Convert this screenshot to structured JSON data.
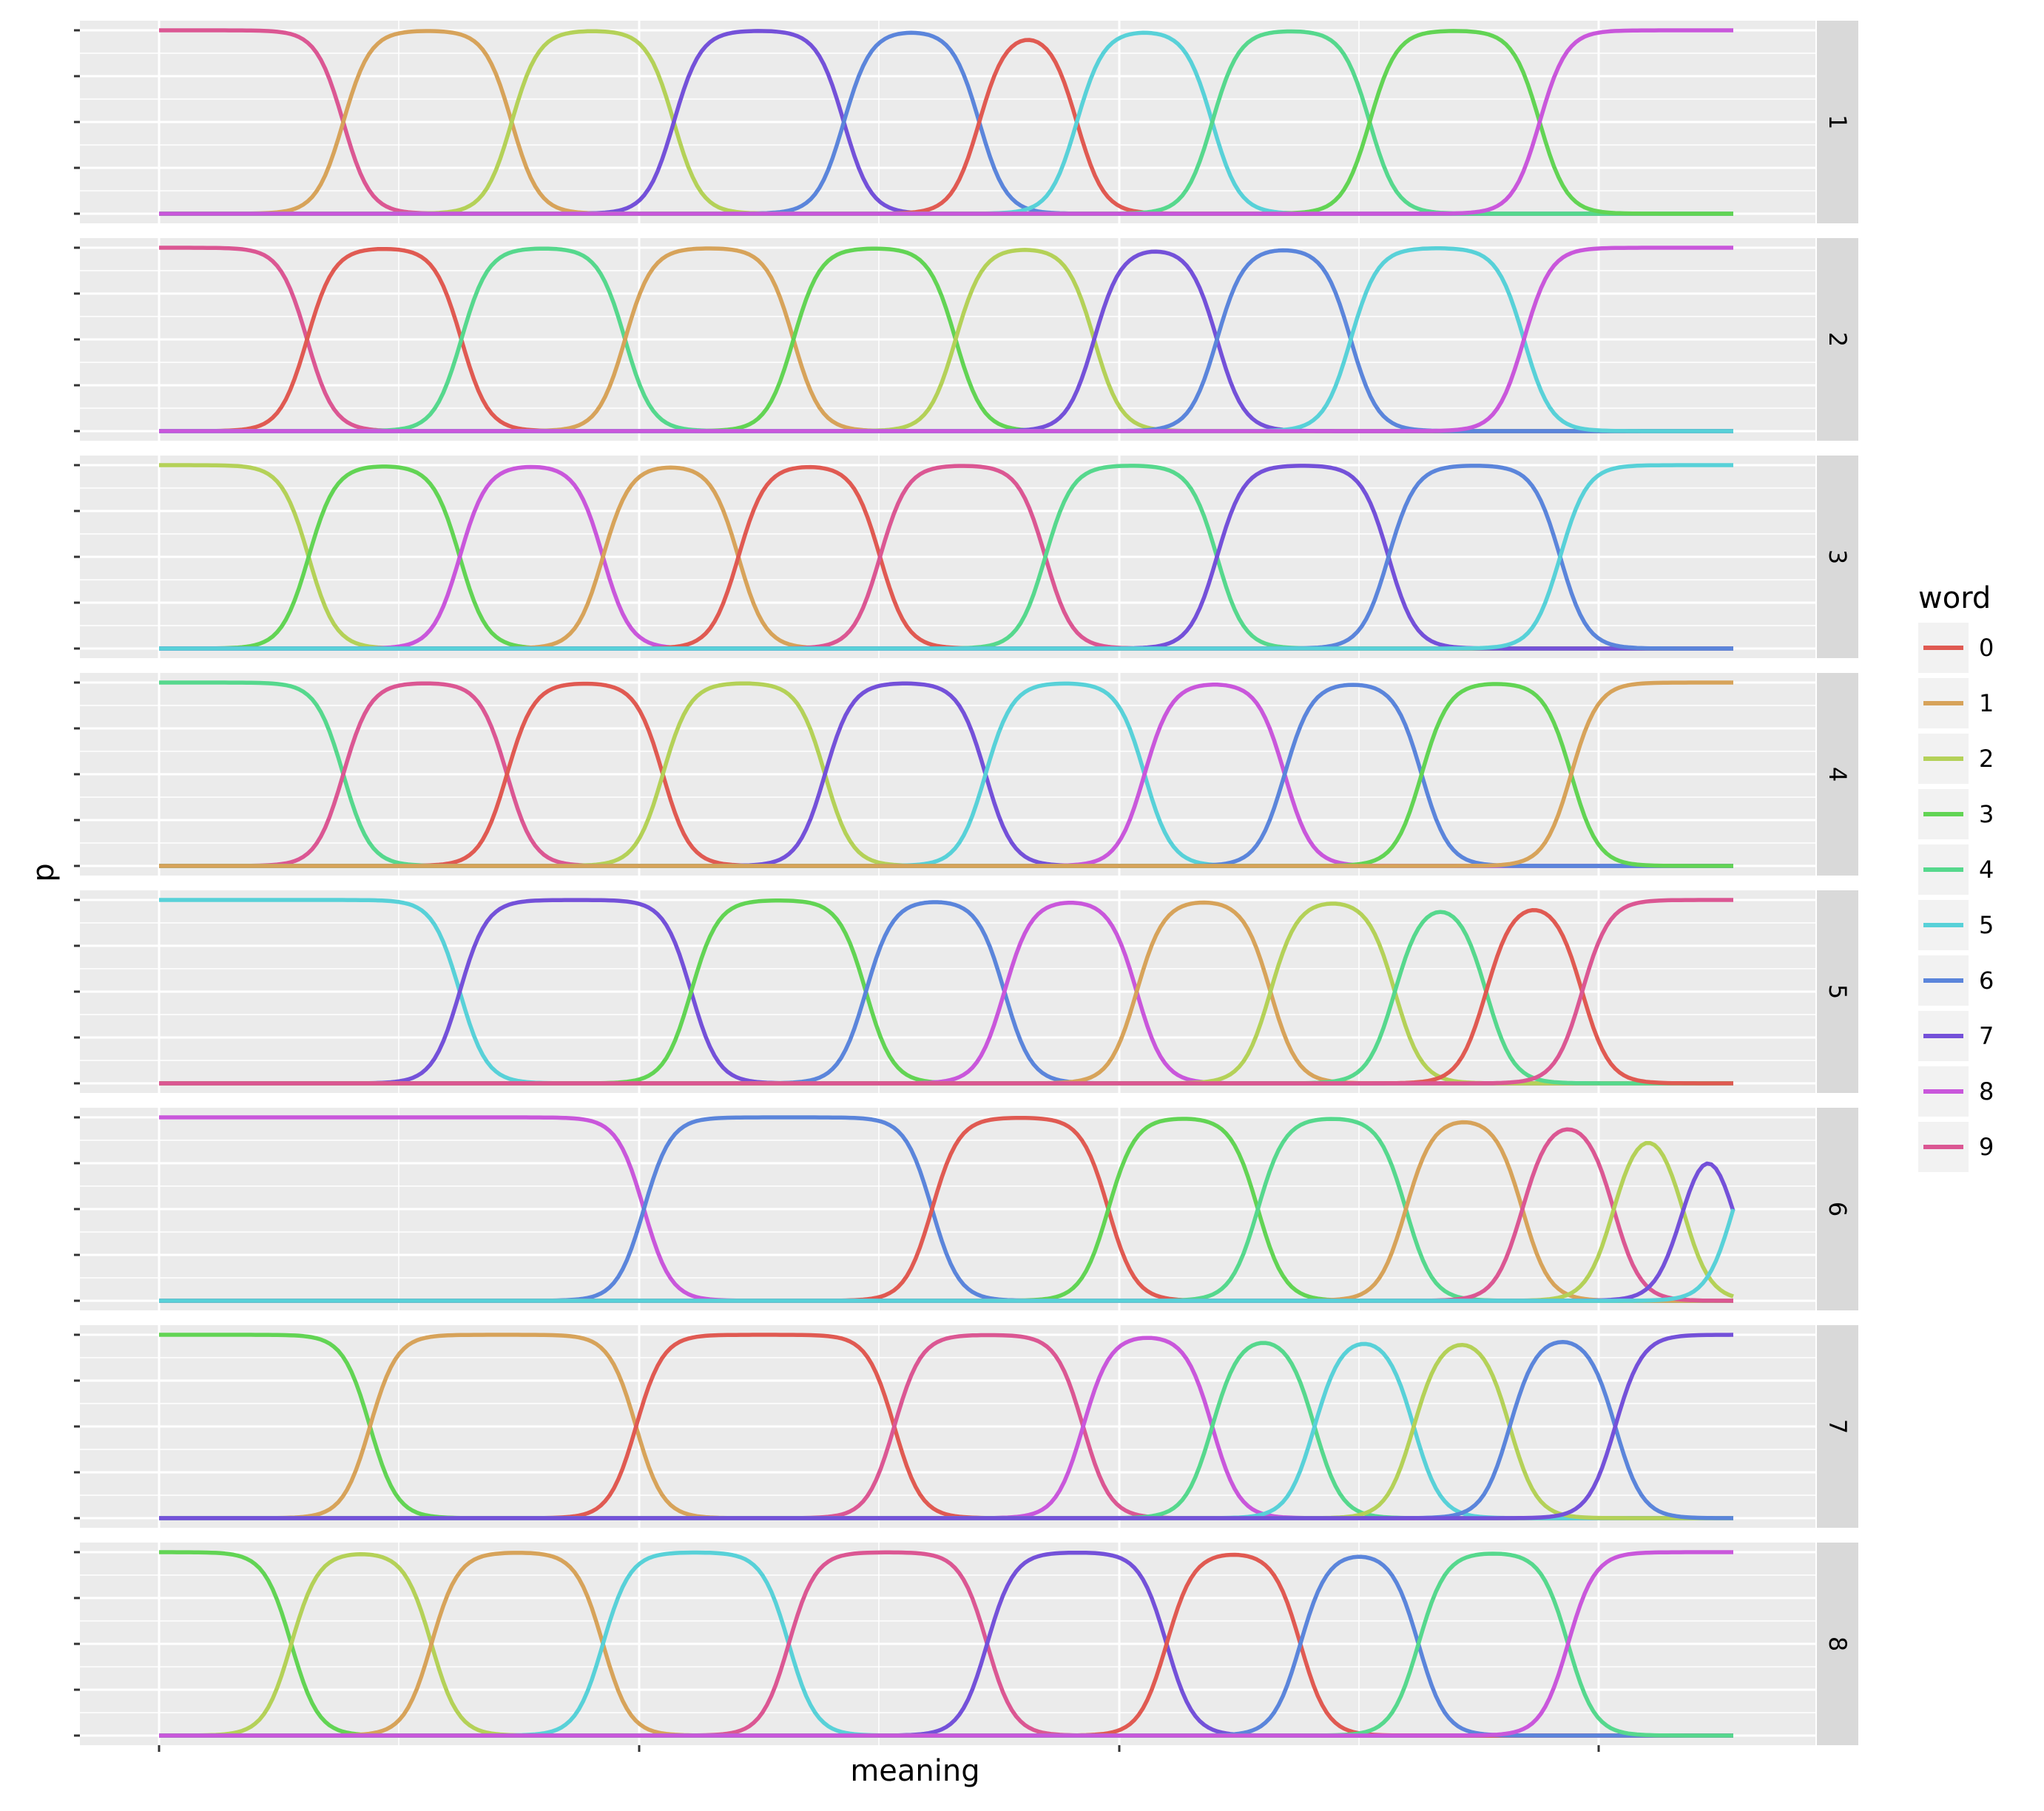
{
  "chart_data": {
    "type": "line",
    "facet_by": "panel",
    "panels": [
      "1",
      "2",
      "3",
      "4",
      "5",
      "6",
      "7",
      "8"
    ],
    "xlabel": "meaning",
    "ylabel": "p",
    "xlim": [
      0,
      1
    ],
    "ylim": [
      0,
      1
    ],
    "x_tick_labels": "none",
    "y_tick_labels": "none",
    "grid": true,
    "legend": {
      "title": "word",
      "placement": "right",
      "entries": [
        "0",
        "1",
        "2",
        "3",
        "4",
        "5",
        "6",
        "7",
        "8",
        "9"
      ]
    },
    "series_colors": {
      "0": "#E05A52",
      "1": "#D7A35A",
      "2": "#B4D158",
      "3": "#62D454",
      "4": "#56D88D",
      "5": "#58D1D8",
      "6": "#5B85DB",
      "7": "#7451D9",
      "8": "#C957DB",
      "9": "#DB5793"
    },
    "curve_steepness": 0.0086,
    "facets": [
      {
        "panel": "1",
        "words": [
          "9",
          "1",
          "2",
          "7",
          "6",
          "0",
          "5",
          "4",
          "3",
          "8"
        ],
        "boundaries": [
          0.117,
          0.224,
          0.327,
          0.435,
          0.521,
          0.583,
          0.669,
          0.769,
          0.877
        ]
      },
      {
        "panel": "2",
        "words": [
          "9",
          "0",
          "4",
          "1",
          "3",
          "2",
          "7",
          "6",
          "5",
          "8"
        ],
        "boundaries": [
          0.094,
          0.192,
          0.296,
          0.403,
          0.506,
          0.594,
          0.672,
          0.757,
          0.867
        ]
      },
      {
        "panel": "3",
        "words": [
          "2",
          "3",
          "8",
          "1",
          "0",
          "9",
          "4",
          "7",
          "6",
          "5"
        ],
        "boundaries": [
          0.095,
          0.191,
          0.282,
          0.368,
          0.458,
          0.563,
          0.672,
          0.781,
          0.89
        ]
      },
      {
        "panel": "4",
        "words": [
          "4",
          "9",
          "0",
          "2",
          "7",
          "5",
          "8",
          "6",
          "3",
          "1"
        ],
        "boundaries": [
          0.117,
          0.221,
          0.32,
          0.423,
          0.525,
          0.626,
          0.715,
          0.802,
          0.897
        ]
      },
      {
        "panel": "5",
        "words": [
          "5",
          "7",
          "3",
          "6",
          "8",
          "1",
          "2",
          "4",
          "0",
          "9"
        ],
        "boundaries": [
          0.191,
          0.338,
          0.449,
          0.537,
          0.621,
          0.706,
          0.785,
          0.843,
          0.904
        ]
      },
      {
        "panel": "6",
        "words": [
          "8",
          "6",
          "0",
          "3",
          "4",
          "1",
          "9",
          "2",
          "7",
          "5"
        ],
        "boundaries": [
          0.308,
          0.491,
          0.603,
          0.698,
          0.792,
          0.866,
          0.924,
          0.968,
          1.0
        ]
      },
      {
        "panel": "7",
        "words": [
          "3",
          "1",
          "0",
          "9",
          "8",
          "4",
          "5",
          "2",
          "6",
          "7"
        ],
        "boundaries": [
          0.134,
          0.303,
          0.467,
          0.587,
          0.669,
          0.734,
          0.797,
          0.858,
          0.925
        ]
      },
      {
        "panel": "8",
        "words": [
          "3",
          "2",
          "1",
          "5",
          "9",
          "7",
          "0",
          "6",
          "4",
          "8"
        ],
        "boundaries": [
          0.084,
          0.173,
          0.282,
          0.4,
          0.526,
          0.64,
          0.725,
          0.8,
          0.895
        ]
      }
    ]
  }
}
